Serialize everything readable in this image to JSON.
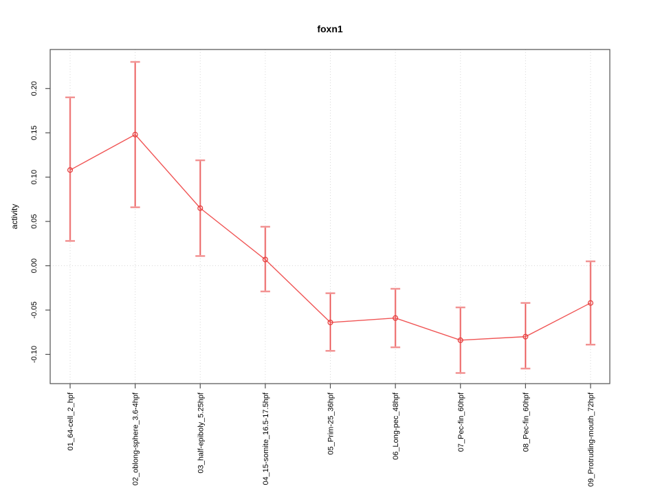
{
  "chart_data": {
    "type": "line",
    "title": "foxn1",
    "xlabel": "",
    "ylabel": "activity",
    "legend": "none",
    "grid": {
      "vertical_dotted_at_each_category": true,
      "horizontal_dotted_at_zero": true
    },
    "categories": [
      "01_64-cell_2_hpf",
      "02_oblong-sphere_3.6-4hpf",
      "03_half-epiboly_5.25hpf",
      "04_15-somite_16.5-17.5hpf",
      "05_Prim-25_36hpf",
      "06_Long-pec_48hpf",
      "07_Pec-fin_60hpf",
      "08_Pec-fin_60hpf",
      "09_Protruding-mouth_72hpf"
    ],
    "series": [
      {
        "name": "activity",
        "values": [
          0.108,
          0.148,
          0.065,
          0.007,
          -0.064,
          -0.059,
          -0.084,
          -0.08,
          -0.042
        ],
        "lower": [
          0.028,
          0.066,
          0.011,
          -0.029,
          -0.096,
          -0.092,
          -0.121,
          -0.116,
          -0.089
        ],
        "upper": [
          0.19,
          0.23,
          0.119,
          0.044,
          -0.031,
          -0.026,
          -0.047,
          -0.042,
          0.005
        ]
      }
    ],
    "yticks": [
      -0.1,
      -0.05,
      0.0,
      0.05,
      0.1,
      0.15,
      0.2
    ],
    "ytick_labels": [
      "-0.10",
      "-0.05",
      "0.00",
      "0.05",
      "0.10",
      "0.15",
      "0.20"
    ],
    "ylim": [
      -0.133,
      0.244
    ],
    "colors": {
      "background": "#ffffff",
      "series_line": "#f05454",
      "error_bar": "#f5a8a8",
      "error_bar_core": "#e84c4c",
      "marker": "#e53e3e",
      "grid": "#d6d6d6",
      "box": "#4f4f4f",
      "text": "#000000"
    }
  }
}
